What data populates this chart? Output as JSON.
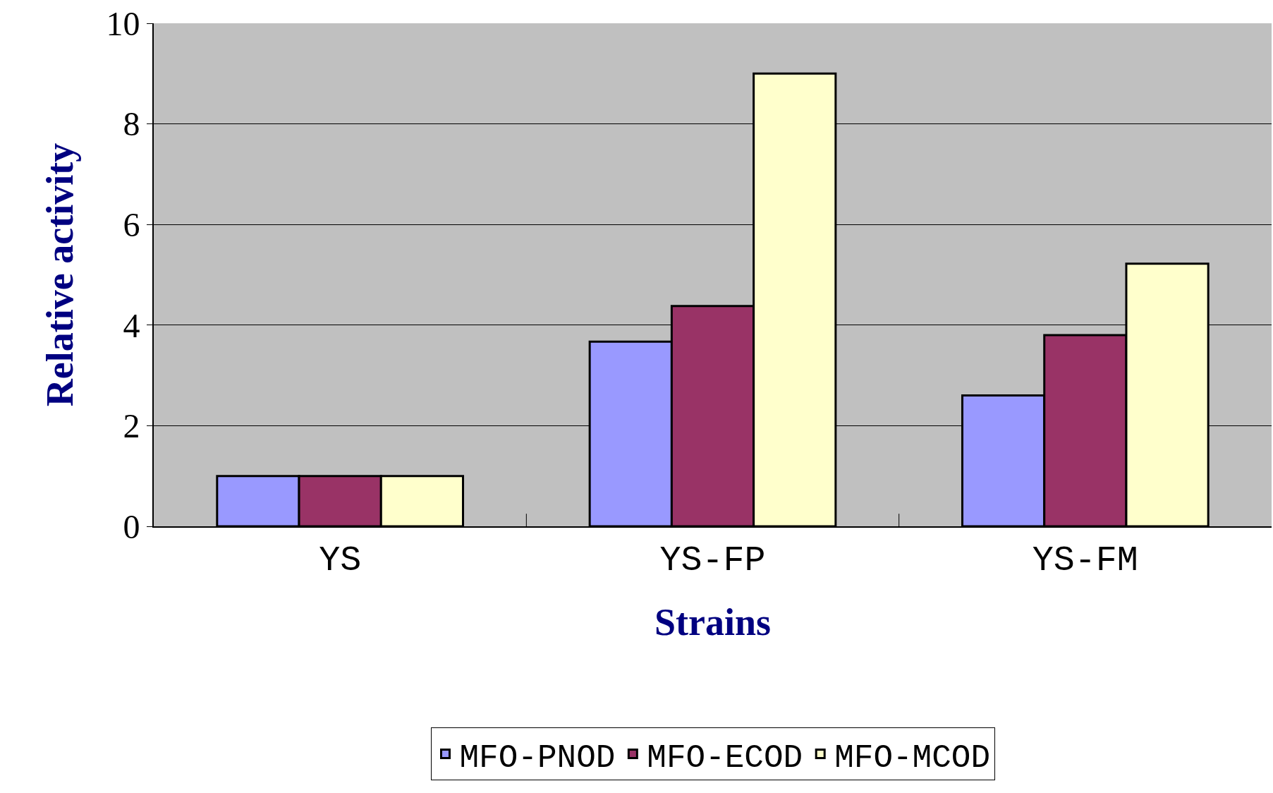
{
  "chart_data": {
    "type": "bar",
    "xlabel": "Strains",
    "ylabel": "Relative activity",
    "categories": [
      "YS",
      "YS-FP",
      "YS-FM"
    ],
    "series": [
      {
        "name": "MFO-PNOD",
        "color": "#9999ff",
        "values": [
          1,
          3.67,
          2.6
        ]
      },
      {
        "name": "MFO-ECOD",
        "color": "#993366",
        "values": [
          1,
          4.38,
          3.8
        ]
      },
      {
        "name": "MFO-MCOD",
        "color": "#ffffcc",
        "values": [
          1,
          9.0,
          5.22
        ]
      }
    ],
    "ylim": [
      0,
      10
    ],
    "yticks": [
      0,
      2,
      4,
      6,
      8,
      10
    ],
    "grid": "y",
    "legend": "bottom"
  }
}
